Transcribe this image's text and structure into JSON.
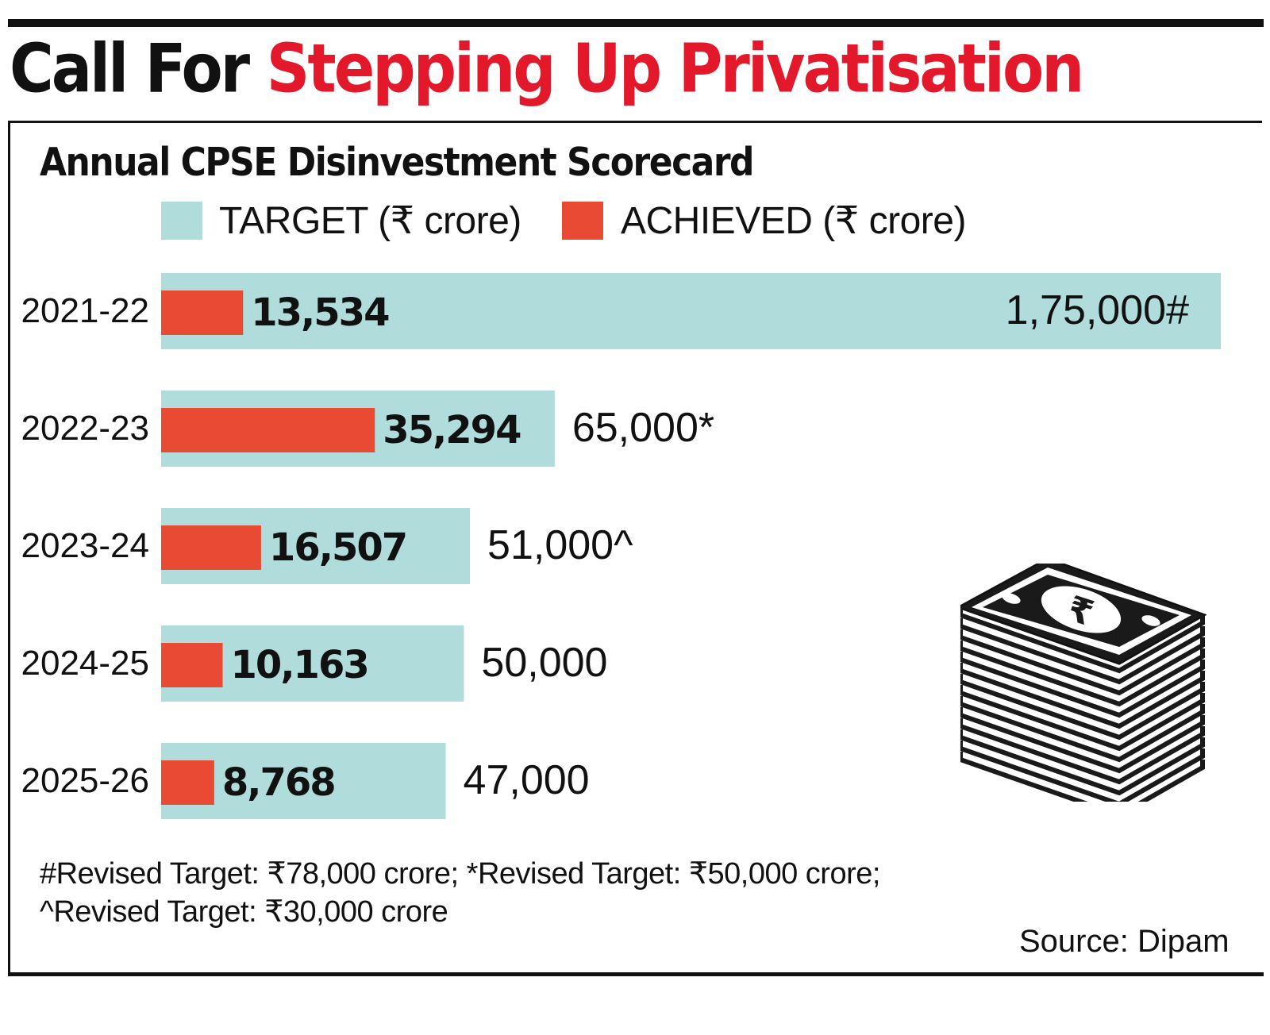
{
  "headline": {
    "part1": "Call For",
    "part2": "Stepping Up Privatisation"
  },
  "subtitle": "Annual CPSE Disinvestment Scorecard",
  "colors": {
    "target": "#b0dcdc",
    "achieved": "#e84a34",
    "headline_red": "#e3192b"
  },
  "chart_data": {
    "type": "bar",
    "orientation": "horizontal",
    "title": "Annual CPSE Disinvestment Scorecard",
    "categories": [
      "2021-22",
      "2022-23",
      "2023-24",
      "2024-25",
      "2025-26"
    ],
    "series": [
      {
        "name": "TARGET (₹ crore)",
        "values": [
          175000,
          65000,
          51000,
          50000,
          47000
        ],
        "labels": [
          "1,75,000#",
          "65,000*",
          "51,000^",
          "50,000",
          "47,000"
        ]
      },
      {
        "name": "ACHIEVED (₹ crore)",
        "values": [
          13534,
          35294,
          16507,
          10163,
          8768
        ],
        "labels": [
          "13,534",
          "35,294",
          "16,507",
          "10,163",
          "8,768"
        ]
      }
    ],
    "xlim": [
      0,
      175000
    ],
    "legend_position": "top",
    "grid": false
  },
  "footnotes": {
    "line1": "#Revised Target: ₹78,000 crore; *Revised Target: ₹50,000 crore;",
    "line2": "^Revised Target: ₹30,000 crore"
  },
  "source": "Source: Dipam",
  "icon": "rupee-banknote-stack-icon"
}
